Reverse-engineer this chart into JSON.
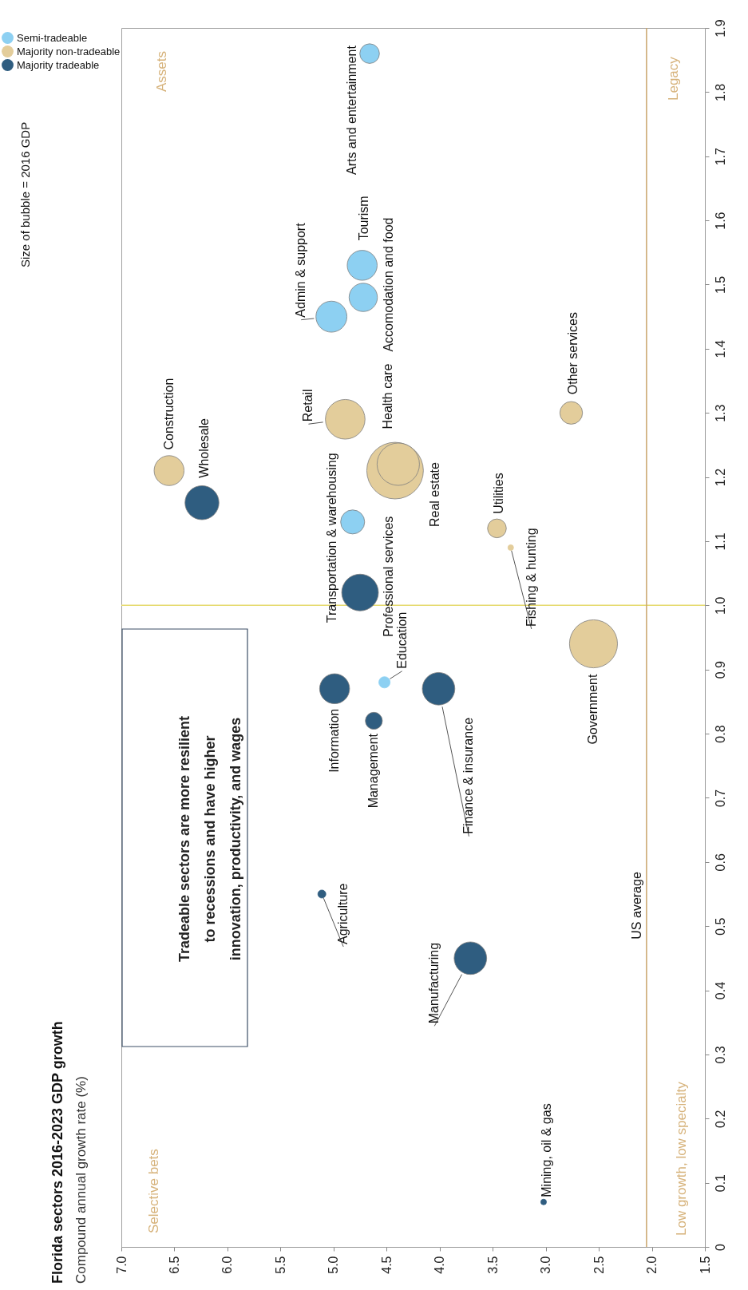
{
  "chart_data": {
    "type": "bubble",
    "title": "Florida sectors 2016-2023 GDP growth",
    "subtitle": "Compound annual growth rate (%)",
    "xlim": [
      7.0,
      1.5
    ],
    "xticks": [
      {
        "value": 7.0,
        "label": "7.0"
      },
      6.5,
      {
        "value": 6.0,
        "label": "6.0"
      },
      5.5,
      {
        "value": 5.0,
        "label": "5.0"
      },
      4.5,
      {
        "value": 4.0,
        "label": "4.0"
      },
      3.5,
      {
        "value": 3.0,
        "label": "3.0"
      },
      2.5,
      {
        "value": 2.0,
        "label": "2.0"
      },
      1.5
    ],
    "ylim": [
      0,
      1.9
    ],
    "yticks": [
      0,
      0.1,
      0.2,
      0.3,
      0.4,
      0.5,
      0.6,
      0.7,
      0.8,
      0.9,
      {
        "value": 1.0,
        "label": "1.0"
      },
      1.1,
      1.2,
      1.3,
      1.4,
      1.5,
      1.6,
      1.7,
      1.8,
      1.9
    ],
    "legend": "left",
    "series": [
      {
        "name": "Semi-tradeable",
        "color": "#8dd0f2",
        "x": [
          4.66,
          4.73,
          4.72,
          5.02,
          4.82,
          4.52
        ],
        "values": [
          1.86,
          1.53,
          1.48,
          1.45,
          1.13,
          0.88
        ],
        "sizes": [
          0.12,
          0.28,
          0.25,
          0.3,
          0.18,
          0.04
        ]
      },
      {
        "name": "Majority non-tradeable",
        "color": "#e3cd9b",
        "x": [
          4.89,
          4.42,
          4.39,
          6.55,
          3.46,
          3.33,
          2.76,
          2.55
        ],
        "values": [
          1.29,
          1.21,
          1.22,
          1.21,
          1.12,
          1.09,
          1.3,
          0.94
        ],
        "sizes": [
          0.49,
          1,
          0.56,
          0.28,
          0.11,
          0.01,
          0.16,
          0.72
        ]
      },
      {
        "name": "Majority tradeable",
        "color": "#2f5d80",
        "x": [
          6.24,
          4.75,
          4.99,
          4.01,
          4.62,
          5.11,
          3.71,
          3.02
        ],
        "values": [
          1.16,
          1.02,
          0.87,
          0.87,
          0.82,
          0.55,
          0.45,
          0.07
        ],
        "sizes": [
          0.36,
          0.42,
          0.28,
          0.33,
          0.09,
          0.02,
          0.33,
          0.01
        ]
      }
    ],
    "ref_lines": [
      {
        "axis": "x",
        "value": 2.05,
        "label": "US average",
        "color": "#c9a46a"
      },
      {
        "axis": "y",
        "value": 1.0,
        "color": "#e6da6e"
      }
    ],
    "annotations": [
      "Tradeable sectors are more resilient\nto recessions and have higher\ninnovation, productivity, and wages",
      "Assets",
      "Legacy",
      "Selective bets",
      "Low growth, low specialty",
      "Size of bubble = 2016 GDP",
      {
        "text": "Arts and entertainment",
        "x": 4.66,
        "y": 1.86
      },
      {
        "text": "Tourism",
        "x": 4.73,
        "y": 1.53
      },
      {
        "text": "Accomodation and food",
        "x": 4.72,
        "y": 1.48
      },
      {
        "text": "Admin & support",
        "x": 5.02,
        "y": 1.45
      },
      {
        "text": "Transportation & warehousing",
        "x": 4.82,
        "y": 1.13
      },
      {
        "text": "Education",
        "x": 4.52,
        "y": 0.88
      },
      {
        "text": "Retail",
        "x": 4.89,
        "y": 1.29
      },
      {
        "text": "Real estate",
        "x": 4.42,
        "y": 1.21
      },
      {
        "text": "Health care",
        "x": 4.39,
        "y": 1.22
      },
      {
        "text": "Construction",
        "x": 6.55,
        "y": 1.21
      },
      {
        "text": "Utilities",
        "x": 3.46,
        "y": 1.12
      },
      {
        "text": "Fishing & hunting",
        "x": 3.33,
        "y": 1.09
      },
      {
        "text": "Other services",
        "x": 2.76,
        "y": 1.3
      },
      {
        "text": "Government",
        "x": 2.55,
        "y": 0.94
      },
      {
        "text": "Wholesale",
        "x": 6.24,
        "y": 1.16
      },
      {
        "text": "Professional services",
        "x": 4.75,
        "y": 1.02
      },
      {
        "text": "Information",
        "x": 4.99,
        "y": 0.87
      },
      {
        "text": "Finance & insurance",
        "x": 4.01,
        "y": 0.87
      },
      {
        "text": "Management",
        "x": 4.62,
        "y": 0.82
      },
      {
        "text": "Agriculture",
        "x": 5.11,
        "y": 0.55
      },
      {
        "text": "Manufacturing",
        "x": 3.71,
        "y": 0.45
      },
      {
        "text": "Mining, oil & gas",
        "x": 3.02,
        "y": 0.07
      }
    ]
  }
}
